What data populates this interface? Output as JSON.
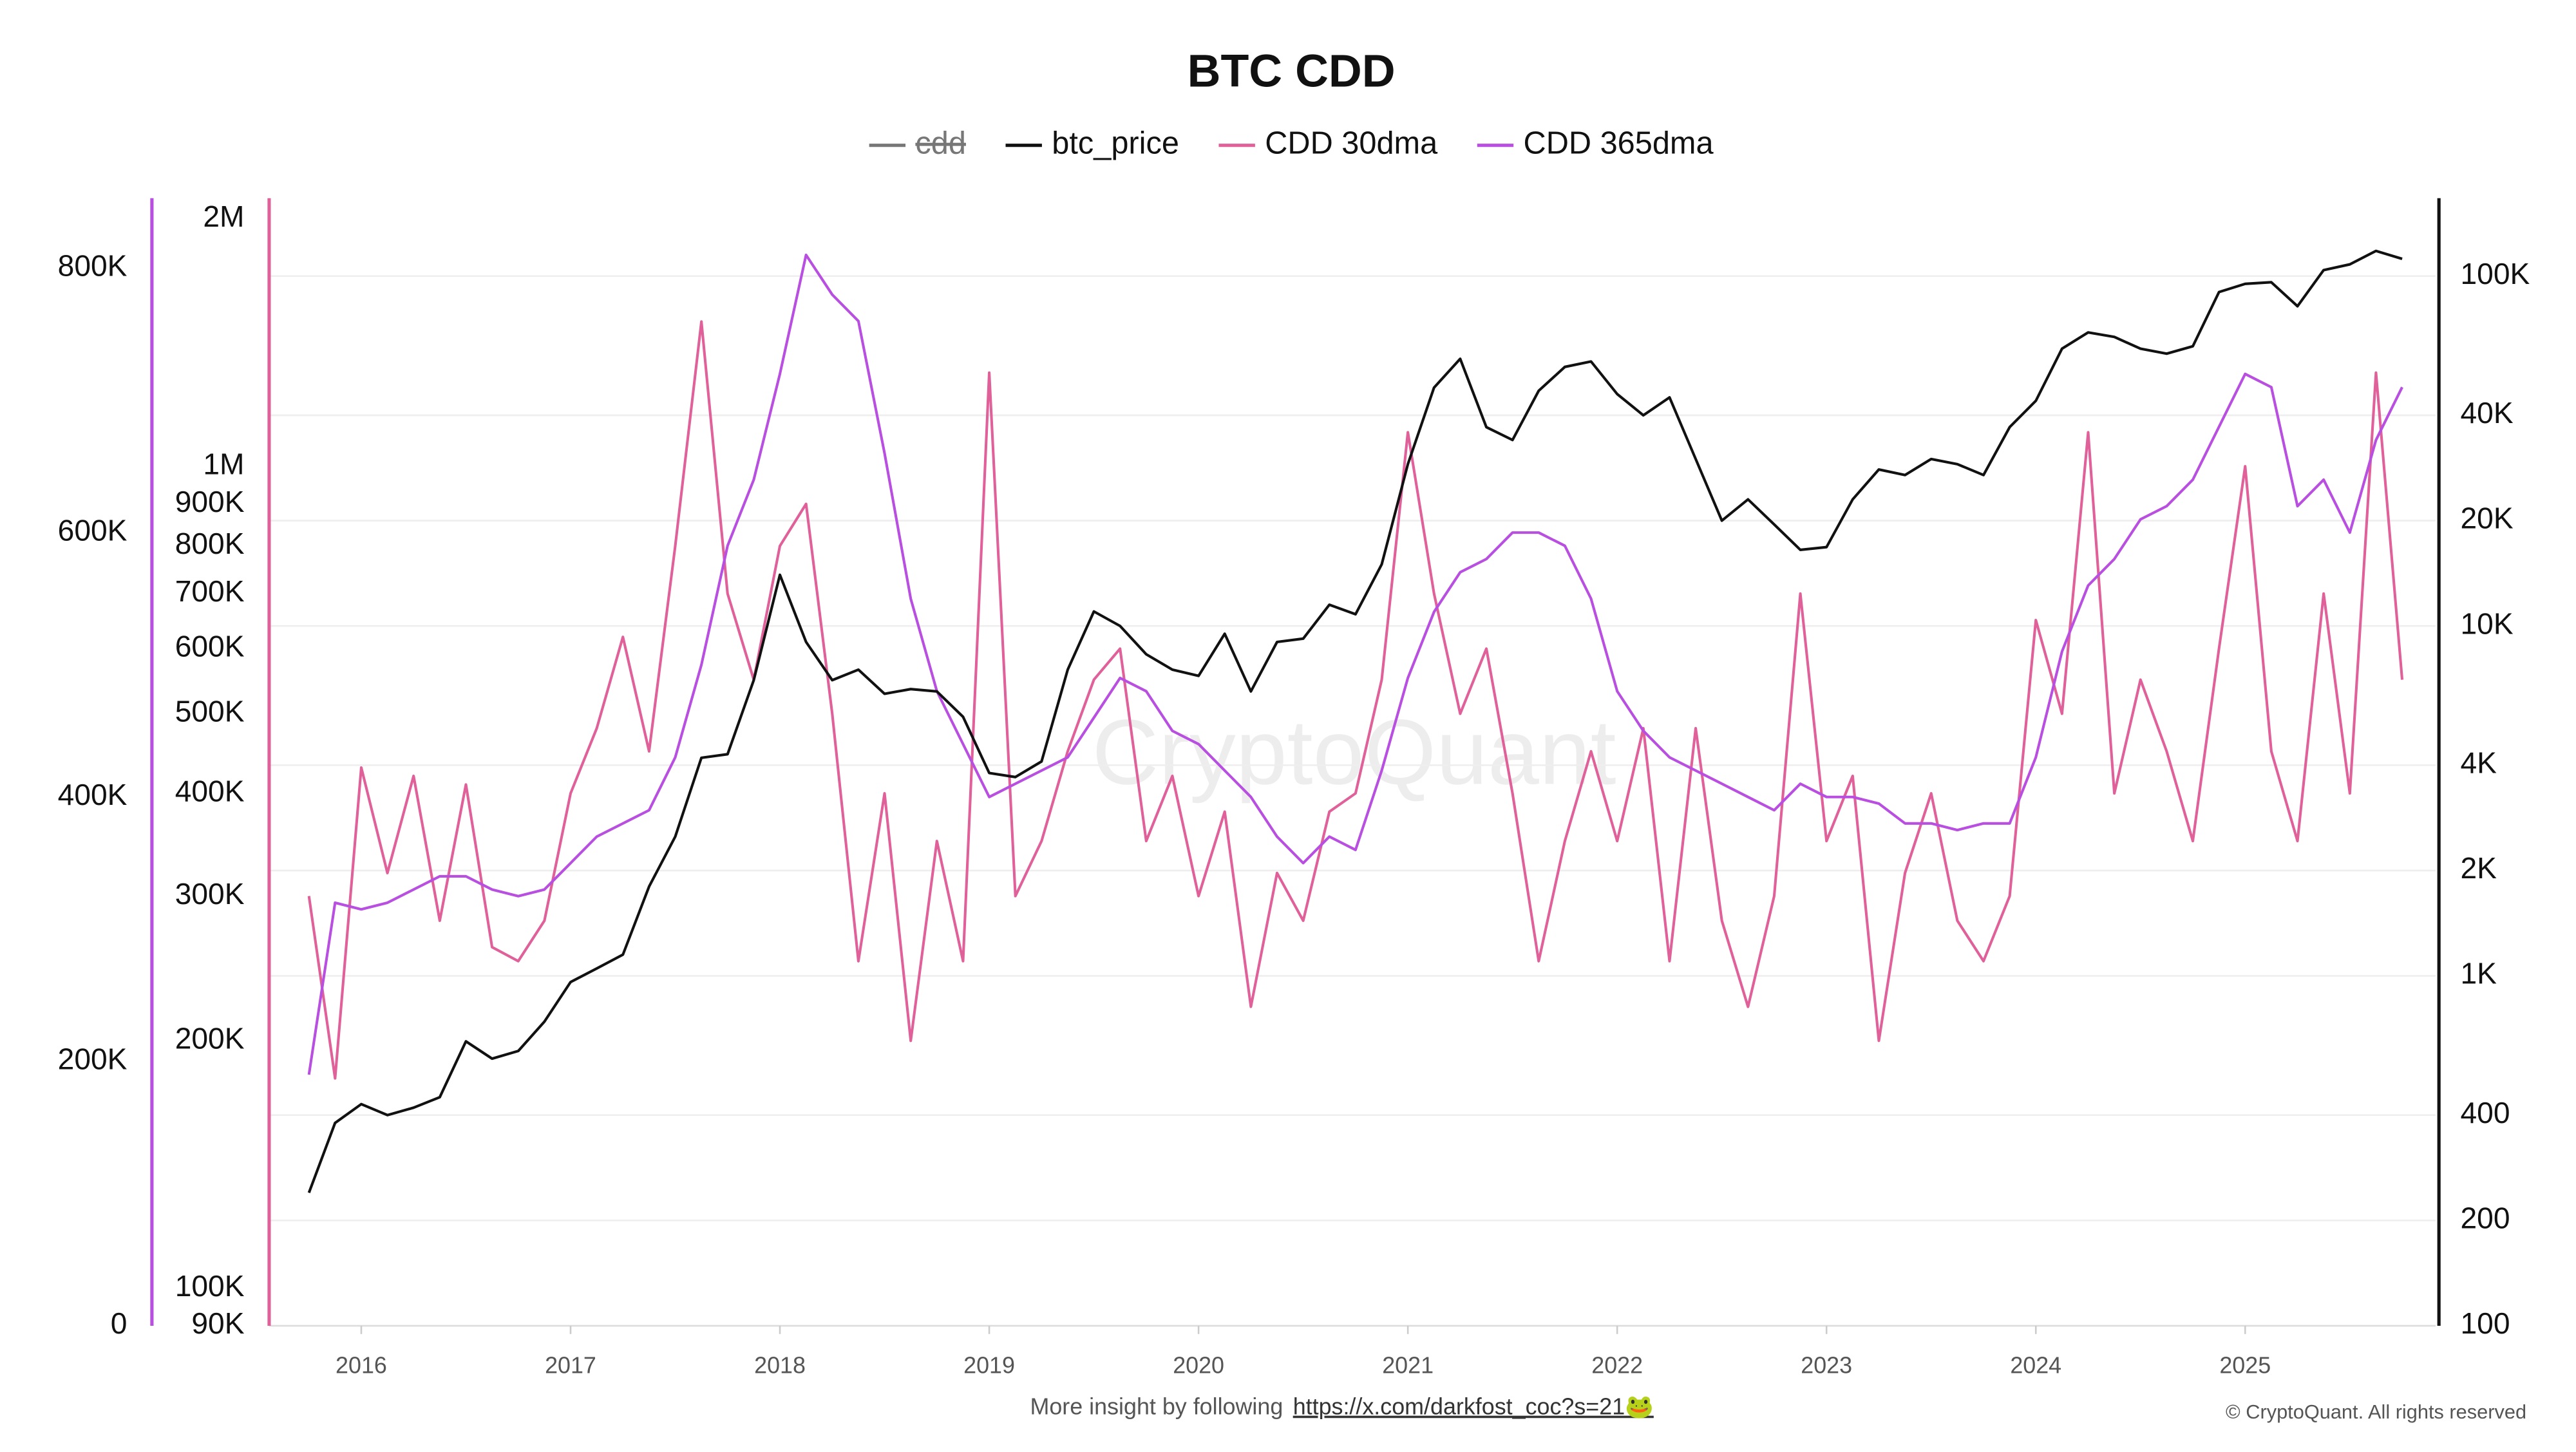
{
  "chart_data": {
    "type": "line",
    "title": "BTC CDD",
    "x": [
      2015.75,
      2015.875,
      2016.0,
      2016.125,
      2016.25,
      2016.375,
      2016.5,
      2016.625,
      2016.75,
      2016.875,
      2017.0,
      2017.125,
      2017.25,
      2017.375,
      2017.5,
      2017.625,
      2017.75,
      2017.875,
      2018.0,
      2018.125,
      2018.25,
      2018.375,
      2018.5,
      2018.625,
      2018.75,
      2018.875,
      2019.0,
      2019.125,
      2019.25,
      2019.375,
      2019.5,
      2019.625,
      2019.75,
      2019.875,
      2020.0,
      2020.125,
      2020.25,
      2020.375,
      2020.5,
      2020.625,
      2020.75,
      2020.875,
      2021.0,
      2021.125,
      2021.25,
      2021.375,
      2021.5,
      2021.625,
      2021.75,
      2021.875,
      2022.0,
      2022.125,
      2022.25,
      2022.375,
      2022.5,
      2022.625,
      2022.75,
      2022.875,
      2023.0,
      2023.125,
      2023.25,
      2023.375,
      2023.5,
      2023.625,
      2023.75,
      2023.875,
      2024.0,
      2024.125,
      2024.25,
      2024.375,
      2024.5,
      2024.625,
      2024.75,
      2024.875,
      2025.0,
      2025.125,
      2025.25,
      2025.375,
      2025.5,
      2025.625,
      2025.75
    ],
    "xlim": [
      2015.56,
      2025.91
    ],
    "xticks": [
      2016,
      2017,
      2018,
      2019,
      2020,
      2021,
      2022,
      2023,
      2024,
      2025
    ],
    "ylim": [
      0,
      853000
    ],
    "yticks": [
      0,
      {
        "value": 200000,
        "label": "200K"
      },
      {
        "value": 400000,
        "label": "400K"
      },
      {
        "value": 600000,
        "label": "600K"
      },
      {
        "value": 800000,
        "label": "800K"
      }
    ],
    "y3lim": [
      90000,
      2120000
    ],
    "y3log": true,
    "y3ticks": [
      {
        "value": 90000,
        "label": "90K"
      },
      {
        "value": 100000,
        "label": "100K"
      },
      {
        "value": 200000,
        "label": "200K"
      },
      {
        "value": 300000,
        "label": "300K"
      },
      {
        "value": 400000,
        "label": "400K"
      },
      {
        "value": 500000,
        "label": "500K"
      },
      {
        "value": 600000,
        "label": "600K"
      },
      {
        "value": 700000,
        "label": "700K"
      },
      {
        "value": 800000,
        "label": "800K"
      },
      {
        "value": 900000,
        "label": "900K"
      },
      {
        "value": 1000000,
        "label": "1M"
      },
      {
        "value": 2000000,
        "label": "2M"
      }
    ],
    "y2lim": [
      100,
      167000
    ],
    "y2log": true,
    "y2ticks": [
      100,
      200,
      400,
      {
        "value": 1000,
        "label": "1K"
      },
      {
        "value": 2000,
        "label": "2K"
      },
      {
        "value": 4000,
        "label": "4K"
      },
      {
        "value": 10000,
        "label": "10K"
      },
      {
        "value": 20000,
        "label": "20K"
      },
      {
        "value": 40000,
        "label": "40K"
      },
      {
        "value": 100000,
        "label": "100K"
      }
    ],
    "grid": true,
    "series": [
      {
        "name": "cdd",
        "color": "#777777",
        "hidden": true
      },
      {
        "name": "btc_price",
        "color": "#111111",
        "axis": "y2",
        "values": [
          240,
          380,
          430,
          400,
          420,
          450,
          650,
          580,
          610,
          740,
          960,
          1050,
          1150,
          1800,
          2500,
          4200,
          4300,
          7000,
          14000,
          9000,
          7000,
          7500,
          6400,
          6600,
          6500,
          5500,
          3800,
          3700,
          4100,
          7500,
          11000,
          10000,
          8300,
          7500,
          7200,
          9500,
          6500,
          9000,
          9200,
          11500,
          10800,
          15000,
          29000,
          48000,
          58000,
          37000,
          34000,
          47000,
          55000,
          57000,
          46000,
          40000,
          45000,
          30000,
          20000,
          23000,
          19500,
          16500,
          16800,
          23000,
          28000,
          27000,
          30000,
          29000,
          27000,
          37000,
          44000,
          62000,
          69000,
          67000,
          62000,
          60000,
          63000,
          90000,
          95000,
          96000,
          82000,
          104000,
          108000,
          118000,
          112000
        ]
      },
      {
        "name": "CDD 30dma",
        "color": "#e0609a",
        "axis": "y3",
        "values": [
          300000,
          180000,
          430000,
          320000,
          420000,
          280000,
          410000,
          260000,
          250000,
          280000,
          400000,
          480000,
          620000,
          450000,
          800000,
          1500000,
          700000,
          550000,
          800000,
          900000,
          500000,
          250000,
          400000,
          200000,
          350000,
          250000,
          1300000,
          300000,
          350000,
          450000,
          550000,
          600000,
          350000,
          420000,
          300000,
          380000,
          220000,
          320000,
          280000,
          380000,
          400000,
          550000,
          1100000,
          700000,
          500000,
          600000,
          400000,
          250000,
          350000,
          450000,
          350000,
          480000,
          250000,
          480000,
          280000,
          220000,
          300000,
          700000,
          350000,
          420000,
          200000,
          320000,
          400000,
          280000,
          250000,
          300000,
          650000,
          500000,
          1100000,
          400000,
          550000,
          450000,
          350000,
          600000,
          1000000,
          450000,
          350000,
          700000,
          400000,
          1300000,
          550000
        ]
      },
      {
        "name": "CDD 365dma",
        "color": "#b84fe0",
        "axis": "y",
        "values": [
          190000,
          320000,
          315000,
          320000,
          330000,
          340000,
          340000,
          330000,
          325000,
          330000,
          350000,
          370000,
          380000,
          390000,
          430000,
          500000,
          590000,
          640000,
          720000,
          810000,
          780000,
          760000,
          660000,
          550000,
          480000,
          440000,
          400000,
          410000,
          420000,
          430000,
          460000,
          490000,
          480000,
          450000,
          440000,
          420000,
          400000,
          370000,
          350000,
          370000,
          360000,
          420000,
          490000,
          540000,
          570000,
          580000,
          600000,
          600000,
          590000,
          550000,
          480000,
          450000,
          430000,
          420000,
          410000,
          400000,
          390000,
          410000,
          400000,
          400000,
          395000,
          380000,
          380000,
          375000,
          380000,
          380000,
          430000,
          510000,
          560000,
          580000,
          610000,
          620000,
          640000,
          680000,
          720000,
          710000,
          620000,
          640000,
          600000,
          670000,
          710000
        ]
      }
    ],
    "watermark": "CryptoQuant",
    "footer_text": "More insight by following",
    "footer_link": "https://x.com/darkfost_coc?s=21🐸",
    "copyright": "© CryptoQuant. All rights reserved"
  }
}
